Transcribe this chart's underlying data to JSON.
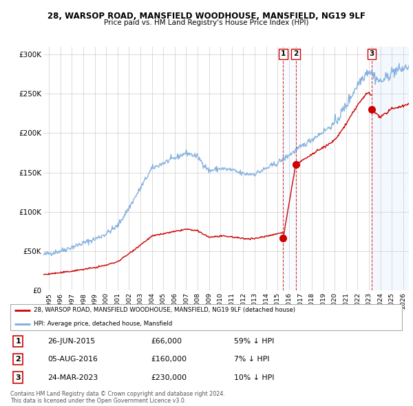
{
  "title": "28, WARSOP ROAD, MANSFIELD WOODHOUSE, MANSFIELD, NG19 9LF",
  "subtitle": "Price paid vs. HM Land Registry's House Price Index (HPI)",
  "background_color": "#ffffff",
  "grid_color": "#cccccc",
  "hpi_line_color": "#7aaadd",
  "price_line_color": "#cc0000",
  "sale_marker_color": "#cc0000",
  "hpi_shade_color": "#ddeeff",
  "shade_alpha": 0.35,
  "ylim": [
    0,
    310000
  ],
  "yticks": [
    0,
    50000,
    100000,
    150000,
    200000,
    250000,
    300000
  ],
  "ytick_labels": [
    "£0",
    "£50K",
    "£100K",
    "£150K",
    "£200K",
    "£250K",
    "£300K"
  ],
  "xlim_start": 1994.5,
  "xlim_end": 2026.5,
  "sales": [
    {
      "date_num": 2015.49,
      "price": 66000,
      "label": "1"
    },
    {
      "date_num": 2016.59,
      "price": 160000,
      "label": "2"
    },
    {
      "date_num": 2023.23,
      "price": 230000,
      "label": "3"
    }
  ],
  "sale_table": [
    {
      "num": "1",
      "date": "26-JUN-2015",
      "price": "£66,000",
      "hpi": "59% ↓ HPI"
    },
    {
      "num": "2",
      "date": "05-AUG-2016",
      "price": "£160,000",
      "hpi": "7% ↓ HPI"
    },
    {
      "num": "3",
      "date": "24-MAR-2023",
      "price": "£230,000",
      "hpi": "10% ↓ HPI"
    }
  ],
  "legend_line1": "28, WARSOP ROAD, MANSFIELD WOODHOUSE, MANSFIELD, NG19 9LF (detached house)",
  "legend_line2": "HPI: Average price, detached house, Mansfield",
  "footer": "Contains HM Land Registry data © Crown copyright and database right 2024.\nThis data is licensed under the Open Government Licence v3.0."
}
